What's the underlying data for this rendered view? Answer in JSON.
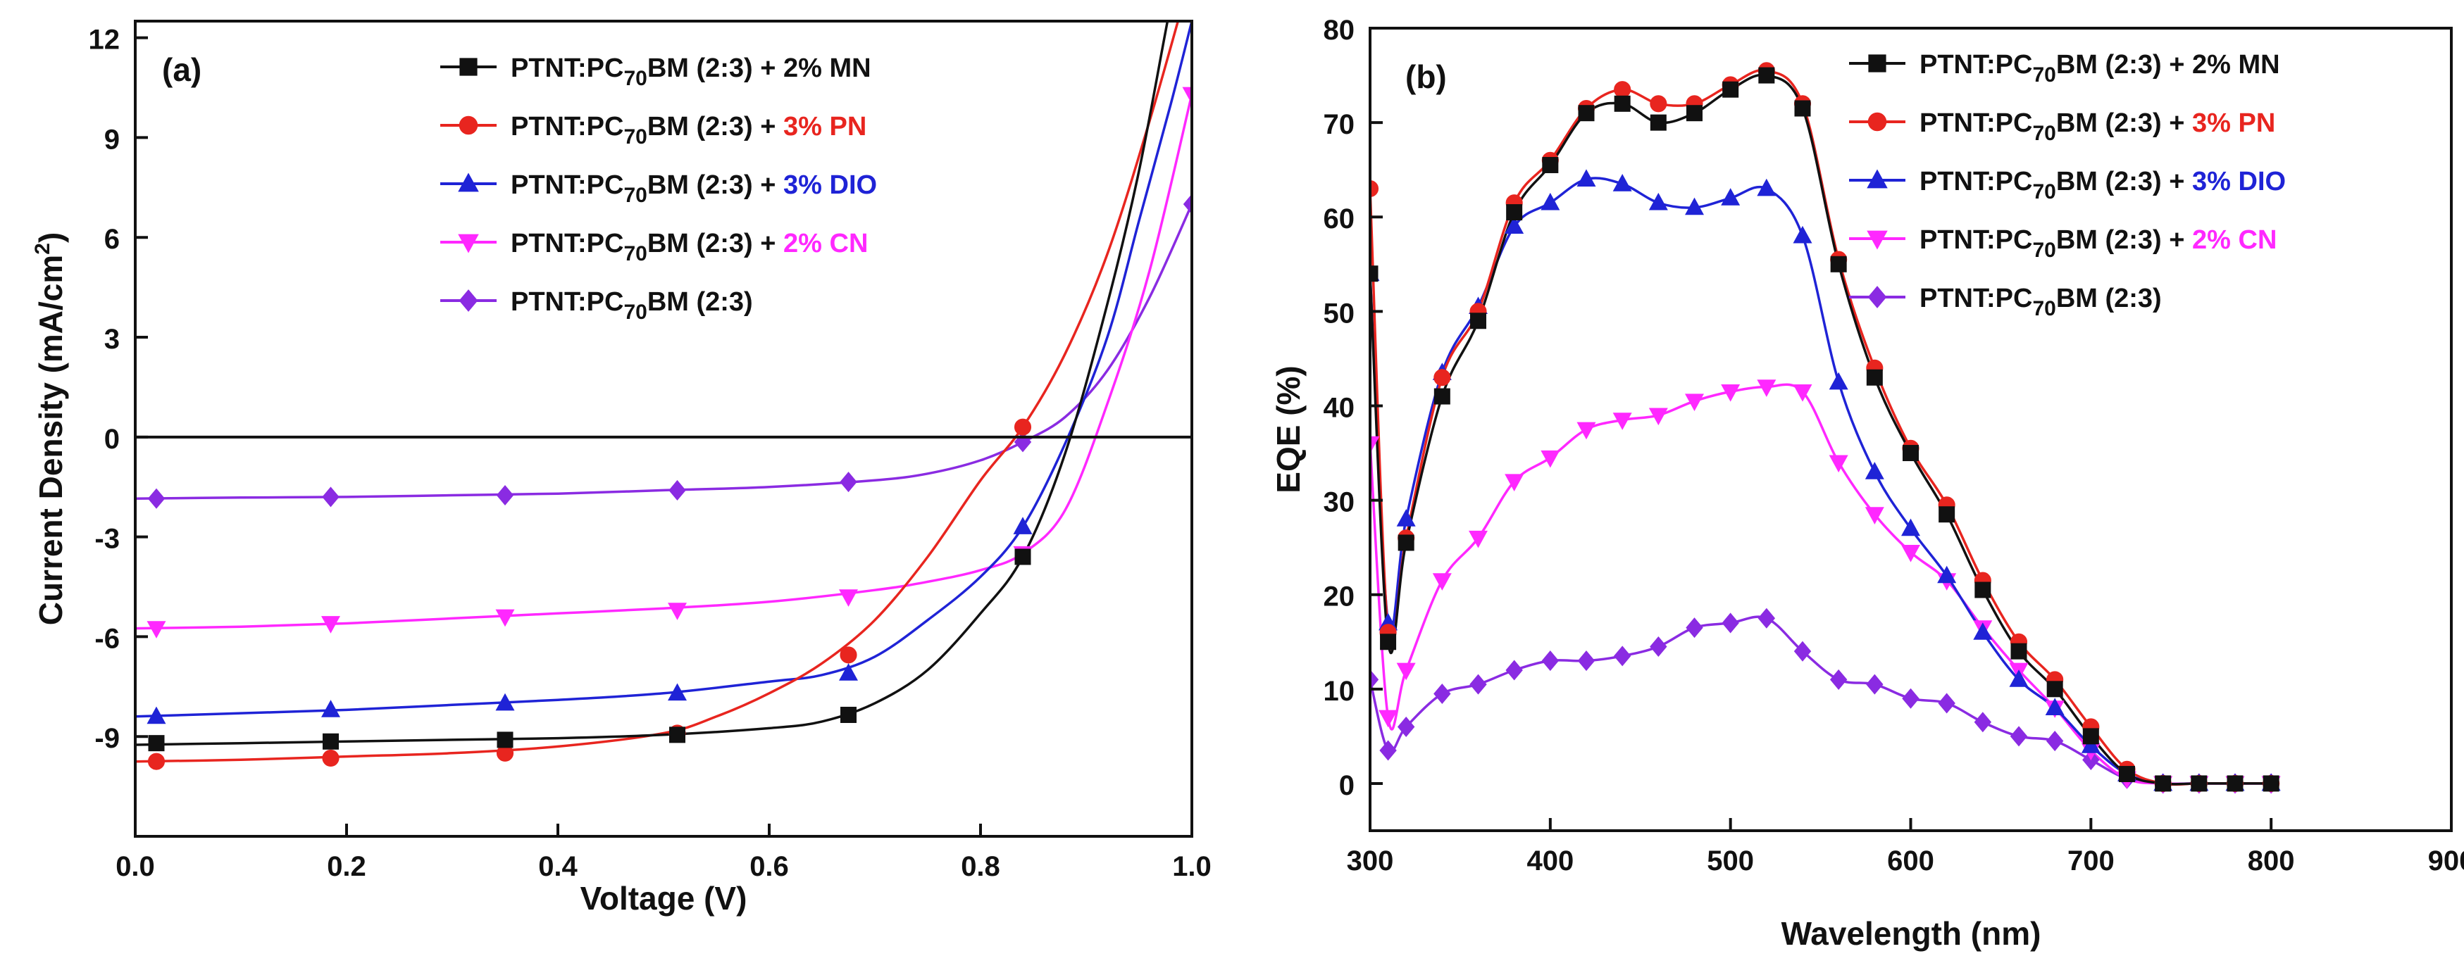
{
  "colors": {
    "MN": "#111111",
    "PN": "#e8251f",
    "DIO": "#1f23d6",
    "CN": "#ff28ff",
    "PRISTINE": "#8a2be2",
    "axis": "#111111"
  },
  "chart_data": [
    {
      "type": "line",
      "panel": "(a)",
      "xlabel": "Voltage (V)",
      "ylabel": "Current Density (mA/cm²)",
      "ylabel_base": "Current Density (mA/cm",
      "ylabel_sup": "2",
      "ylabel_close": ")",
      "xlim": [
        0.0,
        1.0
      ],
      "ylim": [
        -12,
        12.5
      ],
      "xticks": [
        0.0,
        0.2,
        0.4,
        0.6,
        0.8,
        1.0
      ],
      "xtick_labels": [
        "0.0",
        "0.2",
        "0.4",
        "0.6",
        "0.8",
        "1.0"
      ],
      "yticks": [
        -9,
        -6,
        -3,
        0,
        3,
        6,
        9,
        12
      ],
      "ytick_labels": [
        "-9",
        "-6",
        "-3",
        "0",
        "3",
        "6",
        "9",
        "12"
      ],
      "zero_line": 0,
      "series": [
        {
          "key": "MN",
          "marker": "square",
          "name_prefix": "PTNT:PC",
          "name_sub": "70",
          "name_mid": "BM (2:3) + ",
          "name_suffix": "2% MN",
          "x": [
            0.0,
            0.1,
            0.2,
            0.3,
            0.4,
            0.5,
            0.6,
            0.65,
            0.7,
            0.75,
            0.8,
            0.84,
            0.88,
            0.92,
            0.95,
            0.98,
            1.0
          ],
          "y": [
            -9.25,
            -9.2,
            -9.15,
            -9.1,
            -9.05,
            -8.95,
            -8.75,
            -8.55,
            -8.0,
            -7.0,
            -5.3,
            -3.6,
            -0.5,
            4.0,
            8.0,
            13.0,
            16.0
          ],
          "mx": [
            0.02,
            0.185,
            0.35,
            0.513,
            0.675,
            0.84
          ],
          "my": [
            -9.2,
            -9.15,
            -9.1,
            -8.95,
            -8.35,
            -3.6
          ]
        },
        {
          "key": "PN",
          "marker": "circle",
          "name_prefix": "PTNT:PC",
          "name_sub": "70",
          "name_mid": "BM (2:3) + ",
          "name_suffix": "3% PN",
          "x": [
            0.0,
            0.1,
            0.2,
            0.3,
            0.4,
            0.5,
            0.55,
            0.6,
            0.65,
            0.7,
            0.75,
            0.8,
            0.84,
            0.88,
            0.92,
            0.96,
            1.0
          ],
          "y": [
            -9.75,
            -9.7,
            -9.6,
            -9.5,
            -9.3,
            -8.9,
            -8.4,
            -7.7,
            -6.8,
            -5.5,
            -3.6,
            -1.3,
            0.3,
            2.5,
            5.5,
            9.5,
            14.0
          ],
          "mx": [
            0.02,
            0.185,
            0.35,
            0.513,
            0.675,
            0.84
          ],
          "my": [
            -9.75,
            -9.65,
            -9.5,
            -8.9,
            -6.55,
            0.3
          ]
        },
        {
          "key": "DIO",
          "marker": "triangle-up",
          "name_prefix": "PTNT:PC",
          "name_sub": "70",
          "name_mid": "BM (2:3) + ",
          "name_suffix": "3% DIO",
          "x": [
            0.0,
            0.1,
            0.2,
            0.3,
            0.4,
            0.5,
            0.6,
            0.65,
            0.7,
            0.75,
            0.8,
            0.84,
            0.88,
            0.92,
            0.95,
            0.98,
            1.0
          ],
          "y": [
            -8.4,
            -8.3,
            -8.2,
            -8.05,
            -7.9,
            -7.7,
            -7.35,
            -7.15,
            -6.6,
            -5.5,
            -4.2,
            -2.7,
            -0.2,
            3.0,
            6.5,
            10.0,
            12.5
          ],
          "mx": [
            0.02,
            0.185,
            0.35,
            0.513,
            0.675,
            0.84
          ],
          "my": [
            -8.4,
            -8.2,
            -8.0,
            -7.7,
            -7.1,
            -2.7
          ]
        },
        {
          "key": "CN",
          "marker": "triangle-down",
          "name_prefix": "PTNT:PC",
          "name_sub": "70",
          "name_mid": "BM (2:3) + ",
          "name_suffix": "2% CN",
          "x": [
            0.0,
            0.1,
            0.2,
            0.3,
            0.4,
            0.5,
            0.6,
            0.7,
            0.75,
            0.8,
            0.84,
            0.88,
            0.92,
            0.96,
            1.0
          ],
          "y": [
            -5.75,
            -5.7,
            -5.6,
            -5.45,
            -5.3,
            -5.15,
            -4.95,
            -4.6,
            -4.35,
            -4.0,
            -3.5,
            -2.2,
            1.0,
            5.0,
            10.3
          ],
          "mx": [
            0.02,
            0.185,
            0.35,
            0.513,
            0.675,
            0.84,
            1.0
          ],
          "my": [
            -5.75,
            -5.6,
            -5.4,
            -5.2,
            -4.8,
            -3.5,
            10.3
          ]
        },
        {
          "key": "PRISTINE",
          "marker": "diamond",
          "name_prefix": "PTNT:PC",
          "name_sub": "70",
          "name_mid": "BM (2:3)",
          "name_suffix": "",
          "x": [
            0.0,
            0.1,
            0.2,
            0.3,
            0.4,
            0.5,
            0.6,
            0.7,
            0.75,
            0.8,
            0.84,
            0.88,
            0.92,
            0.96,
            1.0
          ],
          "y": [
            -1.85,
            -1.82,
            -1.8,
            -1.75,
            -1.7,
            -1.6,
            -1.5,
            -1.3,
            -1.1,
            -0.7,
            -0.15,
            0.6,
            2.0,
            4.2,
            7.0
          ],
          "mx": [
            0.02,
            0.185,
            0.35,
            0.513,
            0.675,
            0.84,
            1.0
          ],
          "my": [
            -1.85,
            -1.8,
            -1.75,
            -1.6,
            -1.35,
            -0.15,
            7.0
          ]
        }
      ]
    },
    {
      "type": "line",
      "panel": "(b)",
      "xlabel": "Wavelength (nm)",
      "ylabel": "EQE (%)",
      "xlim": [
        300,
        900
      ],
      "ylim": [
        -5,
        80
      ],
      "xticks": [
        300,
        400,
        500,
        600,
        700,
        800,
        900
      ],
      "xtick_labels": [
        "300",
        "400",
        "500",
        "600",
        "700",
        "800",
        "900"
      ],
      "yticks": [
        0,
        10,
        20,
        30,
        40,
        50,
        60,
        70,
        80
      ],
      "ytick_labels": [
        "0",
        "10",
        "20",
        "30",
        "40",
        "50",
        "60",
        "70",
        "80"
      ],
      "series": [
        {
          "key": "MN",
          "marker": "square",
          "name_prefix": "PTNT:PC",
          "name_sub": "70",
          "name_mid": "BM (2:3) + ",
          "name_suffix": "2% MN",
          "x": [
            300,
            310,
            320,
            340,
            360,
            380,
            400,
            420,
            440,
            460,
            480,
            500,
            520,
            540,
            560,
            580,
            600,
            620,
            640,
            660,
            680,
            700,
            720,
            740,
            760,
            780,
            800
          ],
          "y": [
            54,
            15,
            25.5,
            41,
            49,
            60.5,
            65.5,
            71,
            72,
            70,
            71,
            73.5,
            75,
            71.5,
            55,
            43,
            35,
            28.5,
            20.5,
            14,
            10,
            5,
            1,
            0,
            0,
            0,
            0
          ]
        },
        {
          "key": "PN",
          "marker": "circle",
          "name_prefix": "PTNT:PC",
          "name_sub": "70",
          "name_mid": "BM (2:3) + ",
          "name_suffix": "3% PN",
          "x": [
            300,
            310,
            320,
            340,
            360,
            380,
            400,
            420,
            440,
            460,
            480,
            500,
            520,
            540,
            560,
            580,
            600,
            620,
            640,
            660,
            680,
            700,
            720,
            740,
            760,
            780,
            800
          ],
          "y": [
            63,
            16,
            26,
            43,
            50,
            61.5,
            66,
            71.5,
            73.5,
            72,
            72,
            74,
            75.5,
            72,
            55.5,
            44,
            35.5,
            29.5,
            21.5,
            15,
            11,
            6,
            1.5,
            0,
            0,
            0,
            0
          ]
        },
        {
          "key": "DIO",
          "marker": "triangle-up",
          "name_prefix": "PTNT:PC",
          "name_sub": "70",
          "name_mid": "BM (2:3) + ",
          "name_suffix": "3% DIO",
          "x": [
            300,
            310,
            320,
            340,
            360,
            380,
            400,
            420,
            440,
            460,
            480,
            500,
            520,
            540,
            560,
            580,
            600,
            620,
            640,
            660,
            680,
            700,
            720,
            740,
            760,
            780,
            800
          ],
          "y": [
            54,
            17,
            28,
            43.5,
            50.5,
            59,
            61.5,
            64,
            63.5,
            61.5,
            61,
            62,
            63,
            58,
            42.5,
            33,
            27,
            22,
            16,
            11,
            8,
            4,
            1,
            0,
            0,
            0,
            0
          ]
        },
        {
          "key": "CN",
          "marker": "triangle-down",
          "name_prefix": "PTNT:PC",
          "name_sub": "70",
          "name_mid": "BM (2:3) + ",
          "name_suffix": "2% CN",
          "x": [
            300,
            310,
            320,
            340,
            360,
            380,
            400,
            420,
            440,
            460,
            480,
            500,
            520,
            540,
            560,
            580,
            600,
            620,
            640,
            660,
            680,
            700,
            720,
            740,
            760,
            780,
            800
          ],
          "y": [
            36,
            7,
            12,
            21.5,
            26,
            32,
            34.5,
            37.5,
            38.5,
            39,
            40.5,
            41.5,
            42,
            41.5,
            34,
            28.5,
            24.5,
            21.5,
            16.5,
            12,
            8,
            3.5,
            0.5,
            0,
            0,
            0,
            0
          ]
        },
        {
          "key": "PRISTINE",
          "marker": "diamond",
          "name_prefix": "PTNT:PC",
          "name_sub": "70",
          "name_mid": "BM (2:3)",
          "name_suffix": "",
          "x": [
            300,
            310,
            320,
            340,
            360,
            380,
            400,
            420,
            440,
            460,
            480,
            500,
            520,
            540,
            560,
            580,
            600,
            620,
            640,
            660,
            680,
            700,
            720,
            740,
            760,
            780,
            800
          ],
          "y": [
            11,
            3.5,
            6,
            9.5,
            10.5,
            12,
            13,
            13,
            13.5,
            14.5,
            16.5,
            17,
            17.5,
            14,
            11,
            10.5,
            9,
            8.5,
            6.5,
            5,
            4.5,
            2.5,
            0.5,
            0,
            0,
            0,
            0
          ]
        }
      ]
    }
  ]
}
